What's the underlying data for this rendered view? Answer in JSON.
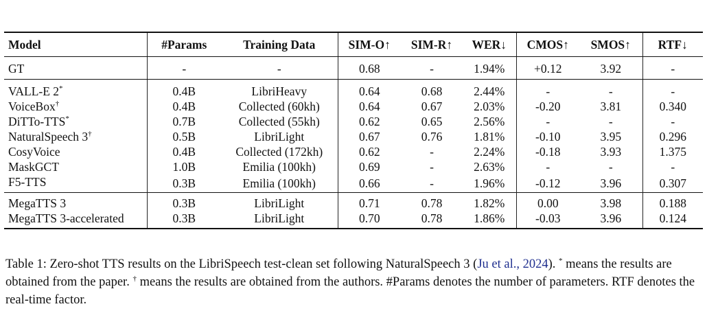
{
  "table": {
    "headers": {
      "model": "Model",
      "params": "#Params",
      "training_data": "Training Data",
      "sim_o": "SIM-O↑",
      "sim_r": "SIM-R↑",
      "wer": "WER↓",
      "cmos": "CMOS↑",
      "smos": "SMOS↑",
      "rtf": "RTF↓"
    },
    "rows": [
      {
        "model": "GT",
        "sup": "",
        "params": "-",
        "training_data": "-",
        "sim_o": "0.68",
        "sim_r": "-",
        "wer": "1.94%",
        "cmos": "+0.12",
        "smos": "3.92",
        "rtf": "-"
      },
      {
        "model": "VALL-E 2",
        "sup": "*",
        "params": "0.4B",
        "training_data": "LibriHeavy",
        "sim_o": "0.64",
        "sim_r": "0.68",
        "wer": "2.44%",
        "cmos": "-",
        "smos": "-",
        "rtf": "-"
      },
      {
        "model": "VoiceBox",
        "sup": "†",
        "params": "0.4B",
        "training_data": "Collected (60kh)",
        "sim_o": "0.64",
        "sim_r": "0.67",
        "wer": "2.03%",
        "cmos": "-0.20",
        "smos": "3.81",
        "rtf": "0.340"
      },
      {
        "model": "DiTTo-TTS",
        "sup": "*",
        "params": "0.7B",
        "training_data": "Collected (55kh)",
        "sim_o": "0.62",
        "sim_r": "0.65",
        "wer": "2.56%",
        "cmos": "-",
        "smos": "-",
        "rtf": "-"
      },
      {
        "model": "NaturalSpeech 3",
        "sup": "†",
        "params": "0.5B",
        "training_data": "LibriLight",
        "sim_o": "0.67",
        "sim_r": "0.76",
        "wer": "1.81%",
        "cmos": "-0.10",
        "smos": "3.95",
        "rtf": "0.296"
      },
      {
        "model": "CosyVoice",
        "sup": "",
        "params": "0.4B",
        "training_data": "Collected (172kh)",
        "sim_o": "0.62",
        "sim_r": "-",
        "wer": "2.24%",
        "cmos": "-0.18",
        "smos": "3.93",
        "rtf": "1.375"
      },
      {
        "model": "MaskGCT",
        "sup": "",
        "params": "1.0B",
        "training_data": "Emilia (100kh)",
        "sim_o": "0.69",
        "sim_r": "-",
        "wer": "2.63%",
        "cmos": "-",
        "smos": "-",
        "rtf": "-"
      },
      {
        "model": "F5-TTS",
        "sup": "",
        "params": "0.3B",
        "training_data": "Emilia (100kh)",
        "sim_o": "0.66",
        "sim_r": "-",
        "wer": "1.96%",
        "cmos": "-0.12",
        "smos": "3.96",
        "rtf": "0.307"
      },
      {
        "model": "MegaTTS 3",
        "sup": "",
        "params": "0.3B",
        "training_data": "LibriLight",
        "sim_o": "0.71",
        "sim_r": "0.78",
        "wer": "1.82%",
        "cmos": "0.00",
        "smos": "3.98",
        "rtf": "0.188"
      },
      {
        "model": "MegaTTS 3-accelerated",
        "sup": "",
        "params": "0.3B",
        "training_data": "LibriLight",
        "sim_o": "0.70",
        "sim_r": "0.78",
        "wer": "1.86%",
        "cmos": "-0.03",
        "smos": "3.96",
        "rtf": "0.124"
      }
    ]
  },
  "caption": {
    "label": "Table 1:",
    "text_1": "Zero-shot TTS results on the LibriSpeech test-clean set following NaturalSpeech 3 (",
    "citation": "Ju et al., 2024",
    "text_2": "). ",
    "star": "*",
    "text_3": " means the results are obtained from the paper. ",
    "dagger": "†",
    "text_4": " means the results are obtained from the authors. #Params denotes the number of parameters. RTF denotes the real-time factor."
  }
}
